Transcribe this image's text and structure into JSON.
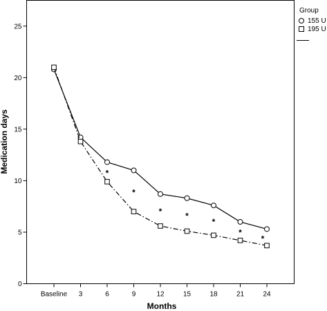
{
  "chart_data": {
    "type": "line",
    "title": "",
    "xlabel": "Months",
    "ylabel": "Medication days",
    "categories": [
      "Baseline",
      "3",
      "6",
      "9",
      "12",
      "15",
      "18",
      "21",
      "24"
    ],
    "ylim": [
      0,
      27.5
    ],
    "yticks": [
      0,
      5,
      10,
      15,
      20,
      25
    ],
    "series": [
      {
        "name": "155 U",
        "marker": "circle",
        "line_style": "solid",
        "values": [
          20.8,
          14.2,
          11.8,
          11.0,
          8.7,
          8.3,
          7.6,
          6.0,
          5.3
        ]
      },
      {
        "name": "195 U",
        "marker": "square",
        "line_style": "dash-dot",
        "values": [
          21.0,
          13.8,
          9.9,
          7.0,
          5.6,
          5.1,
          4.7,
          4.2,
          3.7
        ]
      }
    ],
    "significance_marks": [
      {
        "category": "6",
        "text": "*"
      },
      {
        "category": "9",
        "text": "*"
      },
      {
        "category": "12",
        "text": "*"
      },
      {
        "category": "15",
        "text": "*"
      },
      {
        "category": "18",
        "text": "*"
      },
      {
        "category": "21",
        "text": "*"
      },
      {
        "category": "24",
        "text": "*"
      }
    ],
    "legend": {
      "title": "Group",
      "placement": "right"
    },
    "grid": false
  }
}
